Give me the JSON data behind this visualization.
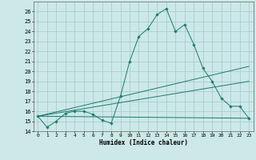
{
  "xlabel": "Humidex (Indice chaleur)",
  "background_color": "#cce8e8",
  "grid_color": "#aacece",
  "line_color": "#1a7a6e",
  "xlim": [
    -0.5,
    23.5
  ],
  "ylim": [
    14,
    27
  ],
  "yticks": [
    14,
    15,
    16,
    17,
    18,
    19,
    20,
    21,
    22,
    23,
    24,
    25,
    26
  ],
  "xticks": [
    0,
    1,
    2,
    3,
    4,
    5,
    6,
    7,
    8,
    9,
    10,
    11,
    12,
    13,
    14,
    15,
    16,
    17,
    18,
    19,
    20,
    21,
    22,
    23
  ],
  "main_series_x": [
    0,
    1,
    2,
    3,
    4,
    5,
    6,
    7,
    8,
    9,
    10,
    11,
    12,
    13,
    14,
    15,
    16,
    17,
    18,
    19,
    20,
    21,
    22,
    23
  ],
  "main_series_y": [
    15.5,
    14.4,
    15.0,
    15.8,
    16.0,
    16.0,
    15.7,
    15.1,
    14.8,
    17.5,
    21.0,
    23.5,
    24.3,
    25.7,
    26.3,
    24.0,
    24.7,
    22.7,
    20.3,
    19.0,
    17.3,
    16.5,
    16.5,
    15.3
  ],
  "line1_x": [
    0,
    23
  ],
  "line1_y": [
    15.5,
    15.3
  ],
  "line2_x": [
    0,
    23
  ],
  "line2_y": [
    15.5,
    20.5
  ],
  "line3_x": [
    0,
    23
  ],
  "line3_y": [
    15.5,
    19.0
  ]
}
